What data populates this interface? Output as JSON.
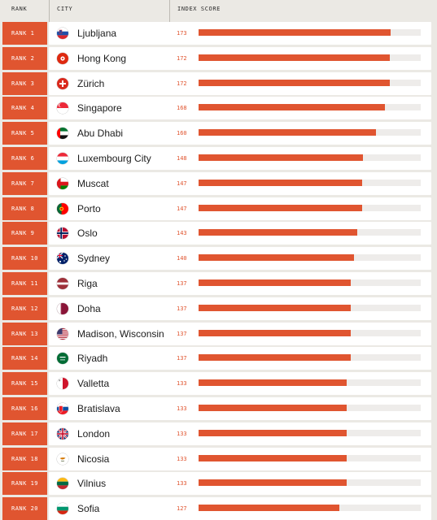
{
  "header": {
    "rank": "RANK",
    "city": "CITY",
    "score": "INDEX SCORE"
  },
  "colors": {
    "accent": "#e05530",
    "track": "#eeecea",
    "background": "#ebe9e4"
  },
  "chart_data": {
    "type": "bar",
    "orientation": "horizontal",
    "xlim": [
      0,
      200
    ],
    "rows": [
      {
        "rank": "RANK 1",
        "city": "Ljubljana",
        "score": 173,
        "flag": "slovenia-flag-icon"
      },
      {
        "rank": "RANK 2",
        "city": "Hong Kong",
        "score": 172,
        "flag": "hong-kong-flag-icon"
      },
      {
        "rank": "RANK 3",
        "city": "Zürich",
        "score": 172,
        "flag": "switzerland-flag-icon"
      },
      {
        "rank": "RANK 4",
        "city": "Singapore",
        "score": 168,
        "flag": "singapore-flag-icon"
      },
      {
        "rank": "RANK 5",
        "city": "Abu Dhabi",
        "score": 160,
        "flag": "uae-flag-icon"
      },
      {
        "rank": "RANK 6",
        "city": "Luxembourg City",
        "score": 148,
        "flag": "luxembourg-flag-icon"
      },
      {
        "rank": "RANK 7",
        "city": "Muscat",
        "score": 147,
        "flag": "oman-flag-icon"
      },
      {
        "rank": "RANK 8",
        "city": "Porto",
        "score": 147,
        "flag": "portugal-flag-icon"
      },
      {
        "rank": "RANK 9",
        "city": "Oslo",
        "score": 143,
        "flag": "norway-flag-icon"
      },
      {
        "rank": "RANK 10",
        "city": "Sydney",
        "score": 140,
        "flag": "australia-flag-icon"
      },
      {
        "rank": "RANK 11",
        "city": "Riga",
        "score": 137,
        "flag": "latvia-flag-icon"
      },
      {
        "rank": "RANK 12",
        "city": "Doha",
        "score": 137,
        "flag": "qatar-flag-icon"
      },
      {
        "rank": "RANK 13",
        "city": "Madison, Wisconsin",
        "score": 137,
        "flag": "usa-flag-icon"
      },
      {
        "rank": "RANK 14",
        "city": "Riyadh",
        "score": 137,
        "flag": "saudi-arabia-flag-icon"
      },
      {
        "rank": "RANK 15",
        "city": "Valletta",
        "score": 133,
        "flag": "malta-flag-icon"
      },
      {
        "rank": "RANK 16",
        "city": "Bratislava",
        "score": 133,
        "flag": "slovakia-flag-icon"
      },
      {
        "rank": "RANK 17",
        "city": "London",
        "score": 133,
        "flag": "uk-flag-icon"
      },
      {
        "rank": "RANK 18",
        "city": "Nicosia",
        "score": 133,
        "flag": "cyprus-flag-icon"
      },
      {
        "rank": "RANK 19",
        "city": "Vilnius",
        "score": 133,
        "flag": "lithuania-flag-icon"
      },
      {
        "rank": "RANK 20",
        "city": "Sofia",
        "score": 127,
        "flag": "bulgaria-flag-icon"
      }
    ]
  }
}
